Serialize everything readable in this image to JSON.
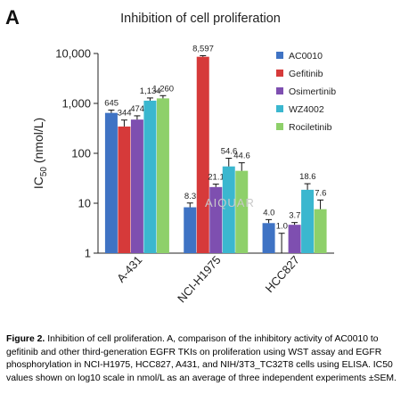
{
  "panel_label": "A",
  "caption": {
    "figure_label": "Figure 2.",
    "text": " Inhibition of cell proliferation. A, comparison of the inhibitory activity of AC0010  to gefitinib and other third-generation EGFR TKIs on proliferation using WST assay and EGFR phosphorylation in NCI-H1975, HCC827, A431, and NIH/3T3_TC32T8  cells using ELISA. IC50 values shown on log10 scale in nmol/L as an average of three independent experiments ±SEM."
  },
  "watermark": "AIQUAR",
  "colors": {
    "AC0010": "#3f73c4",
    "Gefitinib": "#d63a3a",
    "Osimertinib": "#7e4fb0",
    "WZ4002": "#3bb7cf",
    "Rociletinib": "#8ed06a"
  },
  "chart_data": {
    "type": "bar",
    "title": "Inhibition of cell proliferation",
    "ylabel_main": "IC",
    "ylabel_sub": "50",
    "ylabel_rest": " (nmol/L)",
    "yscale": "log",
    "ylim": [
      1,
      10000
    ],
    "yticks": [
      "1",
      "10",
      "100",
      "1,000",
      "10,000"
    ],
    "categories": [
      "A-431",
      "NCI-H1975",
      "HCC827"
    ],
    "legend_position": "right",
    "grid": false,
    "series": [
      {
        "name": "AC0010",
        "values": [
          645,
          8.3,
          4.0
        ],
        "labels": [
          "645",
          "8.3",
          "4.0"
        ],
        "errors": [
          90,
          1.8,
          0.7
        ]
      },
      {
        "name": "Gefitinib",
        "values": [
          344,
          8597,
          1.0
        ],
        "labels": [
          "344",
          "8,597",
          "1.0"
        ],
        "errors": [
          120,
          450,
          1.5
        ]
      },
      {
        "name": "Osimertinib",
        "values": [
          474,
          21.1,
          3.7
        ],
        "labels": [
          "474",
          "21.1",
          "3.7"
        ],
        "errors": [
          90,
          3,
          0.4
        ]
      },
      {
        "name": "WZ4002",
        "values": [
          1134,
          54.6,
          18.6
        ],
        "labels": [
          "1,134",
          "54.6",
          "18.6"
        ],
        "errors": [
          150,
          25,
          6
        ]
      },
      {
        "name": "Rociletinib",
        "values": [
          1260,
          44.6,
          7.6
        ],
        "labels": [
          "1,260",
          "44.6",
          "7.6"
        ],
        "errors": [
          170,
          20,
          4
        ]
      }
    ]
  }
}
